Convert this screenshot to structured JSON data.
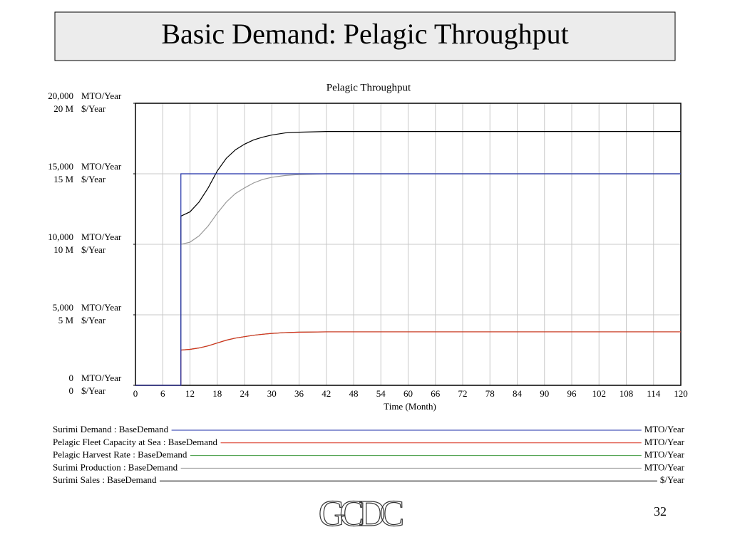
{
  "slide": {
    "title": "Basic Demand: Pelagic Throughput",
    "page_number": "32",
    "logo_text": "GCDC"
  },
  "chart_data": {
    "type": "line",
    "title": "Pelagic Throughput",
    "x_label": "Time (Month)",
    "x": [
      0,
      10,
      10,
      12,
      14,
      16,
      18,
      20,
      22,
      24,
      26,
      28,
      30,
      33,
      36,
      42,
      48,
      60,
      120
    ],
    "xlim": [
      0,
      120
    ],
    "xticks": [
      0,
      6,
      12,
      18,
      24,
      30,
      36,
      42,
      48,
      54,
      60,
      66,
      72,
      78,
      84,
      90,
      96,
      102,
      108,
      114,
      120
    ],
    "ylim": [
      0,
      20000
    ],
    "yticks": [
      0,
      {
        "value": 5000,
        "label": "5,000"
      },
      {
        "value": 10000,
        "label": "10,000"
      },
      {
        "value": 15000,
        "label": "15,000"
      },
      {
        "value": 20000,
        "label": "20,000"
      }
    ],
    "y_unit": "MTO/Year",
    "y2lim": [
      0,
      20000000
    ],
    "y2ticks": [
      0,
      {
        "value": 5000000,
        "label": "5 M"
      },
      {
        "value": 10000000,
        "label": "10 M"
      },
      {
        "value": 15000000,
        "label": "15 M"
      },
      {
        "value": 20000000,
        "label": "20 M"
      }
    ],
    "y2_unit": "$/Year",
    "grid": true,
    "series": [
      {
        "name": "Surimi Demand : BaseDemand",
        "unit": "MTO/Year",
        "color": "#1f2fa8",
        "values": [
          0,
          0,
          15000,
          15000,
          15000,
          15000,
          15000,
          15000,
          15000,
          15000,
          15000,
          15000,
          15000,
          15000,
          15000,
          15000,
          15000,
          15000,
          15000
        ]
      },
      {
        "name": "Pelagic Fleet Capacity at Sea : BaseDemand",
        "unit": "MTO/Year",
        "color": "#d9301f",
        "values": [
          0,
          0,
          2500,
          2550,
          2650,
          2800,
          3000,
          3200,
          3350,
          3450,
          3550,
          3620,
          3680,
          3740,
          3770,
          3790,
          3790,
          3790,
          3790
        ]
      },
      {
        "name": "Pelagic Harvest Rate : BaseDemand",
        "unit": "MTO/Year",
        "color": "#3f9a3f",
        "values": [
          0,
          0,
          2500,
          2550,
          2650,
          2800,
          3000,
          3200,
          3350,
          3450,
          3550,
          3620,
          3680,
          3740,
          3770,
          3790,
          3790,
          3790,
          3790
        ]
      },
      {
        "name": "Surimi Production : BaseDemand",
        "unit": "MTO/Year",
        "color": "#999999",
        "values": [
          0,
          0,
          10000,
          10150,
          10600,
          11300,
          12200,
          13000,
          13600,
          14000,
          14350,
          14600,
          14750,
          14880,
          14950,
          15000,
          15000,
          15000,
          15000
        ]
      },
      {
        "name": "Surimi Sales : BaseDemand",
        "unit": "$/Year",
        "axis": "y2",
        "color": "#000000",
        "values": [
          0,
          0,
          12000000,
          12300000,
          13000000,
          14000000,
          15200000,
          16100000,
          16700000,
          17100000,
          17400000,
          17600000,
          17750000,
          17900000,
          17950000,
          18000000,
          18000000,
          18000000,
          18000000
        ]
      }
    ]
  }
}
